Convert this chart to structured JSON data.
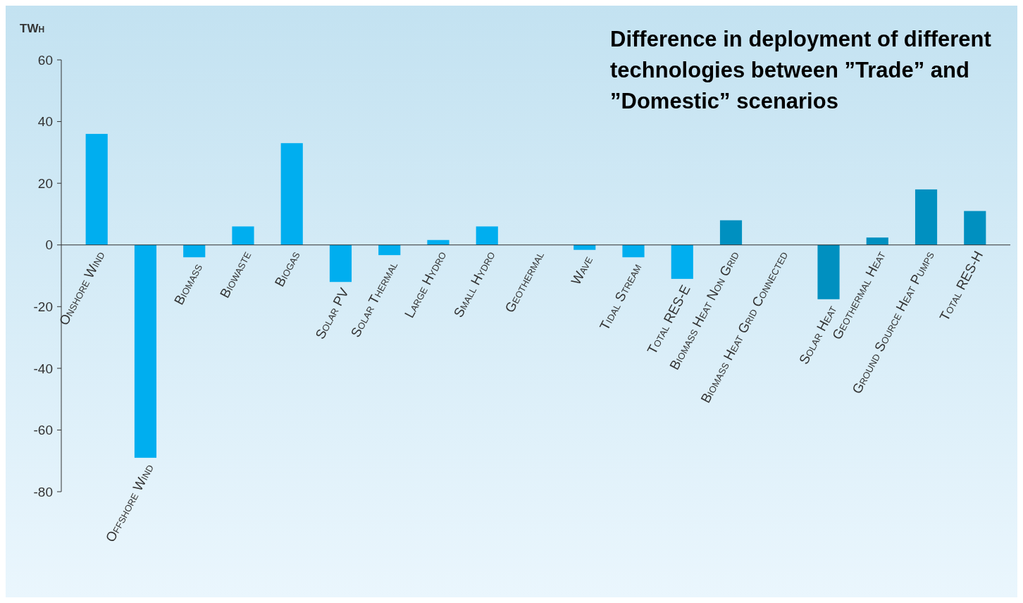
{
  "chart_data": {
    "type": "bar",
    "title": "Difference in deployment of different technologies between ”Trade” and ”Domestic” scenarios",
    "ylabel": "TWh",
    "categories": [
      "Onshore Wind",
      "Offshore Wind",
      "Biomass",
      "Biowaste",
      "Biogas",
      "Solar PV",
      "Solar Thermal",
      "Large Hydro",
      "Small Hydro",
      "Geothermal",
      "Wave",
      "Tidal Stream",
      "Total RES-E",
      "Biomass Heat Non Grid",
      "Biomass Heat Grid Connected",
      "Solar Heat",
      "Geothermal Heat",
      "Ground Source Heat Pumps",
      "Total RES-H"
    ],
    "values": [
      36,
      -69,
      -4,
      6,
      33,
      -12,
      -3.3,
      1.6,
      6,
      0,
      -1.6,
      -4,
      -11,
      8,
      0,
      -17.6,
      2.4,
      18,
      11
    ],
    "colors": [
      "#00aeef",
      "#00aeef",
      "#00aeef",
      "#00aeef",
      "#00aeef",
      "#00aeef",
      "#00aeef",
      "#00aeef",
      "#00aeef",
      "#00aeef",
      "#00aeef",
      "#00aeef",
      "#00aeef",
      "#0090c0",
      "#0090c0",
      "#0090c0",
      "#0090c0",
      "#0090c0",
      "#0090c0"
    ],
    "ylim": [
      -80,
      60
    ],
    "yticks": [
      -80,
      -60,
      -40,
      -20,
      0,
      20,
      40,
      60
    ],
    "grid": false
  }
}
